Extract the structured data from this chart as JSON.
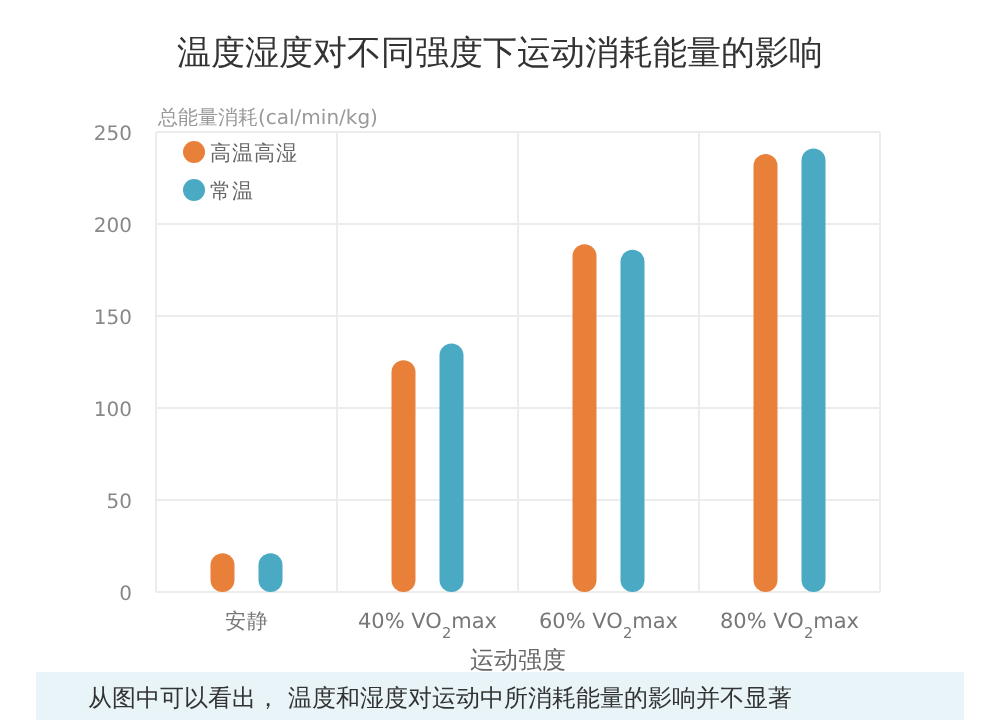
{
  "chart_data": {
    "type": "bar",
    "title": "温度湿度对不同强度下运动消耗能量的影响",
    "ylabel": "总能量消耗(cal/min/kg)",
    "xlabel": "运动强度",
    "categories": [
      "安静",
      "40% VO$_{2}$max",
      "60% VO$_{2}$max",
      "80% VO$_{2}$max"
    ],
    "series": [
      {
        "name": "高温高湿",
        "color": "#e8803a",
        "values": [
          21,
          126,
          189,
          238
        ]
      },
      {
        "name": "常温",
        "color": "#4aaac4",
        "values": [
          21,
          135,
          186,
          241
        ]
      }
    ],
    "ylim": [
      0,
      250
    ],
    "yticks": [
      0,
      50,
      100,
      150,
      200,
      250
    ],
    "grid": true,
    "legend": "top left",
    "annotations": [
      "从图中可以看出， 温度和湿度对运动中所消耗能量的影响并不显著"
    ]
  }
}
